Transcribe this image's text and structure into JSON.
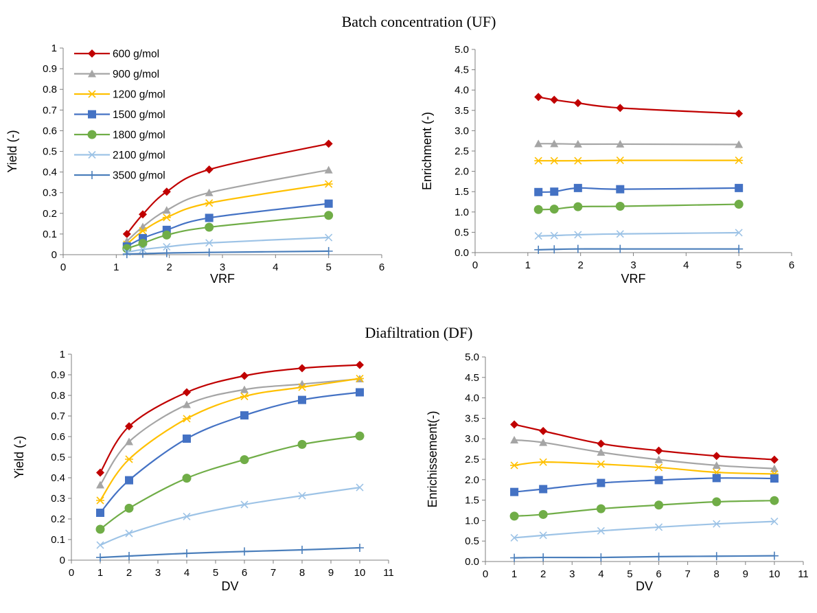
{
  "figure": {
    "section_top_title": "Batch concentration (UF)",
    "section_bottom_title": "Diafiltration  (DF)"
  },
  "colors": {
    "600": "#C00000",
    "900": "#A5A5A5",
    "1200": "#FFC000",
    "1500": "#4472C4",
    "1800": "#70AD47",
    "2100": "#9DC3E6",
    "3500": "#4A7EBB"
  },
  "chart_data": [
    {
      "id": "uf-yield",
      "type": "line",
      "title": "",
      "xlabel": "VRF",
      "ylabel": "Yield (-)",
      "xlim": [
        0,
        6
      ],
      "ylim": [
        0,
        1
      ],
      "xticks": [
        0,
        1,
        2,
        3,
        4,
        5,
        6
      ],
      "yticks": [
        0,
        0.1,
        0.2,
        0.3,
        0.4,
        0.5,
        0.6,
        0.7,
        0.8,
        0.9,
        1
      ],
      "ytick_labels": [
        "0",
        "0.1",
        "0.2",
        "0.3",
        "0.4",
        "0.5",
        "0.6",
        "0.7",
        "0.8",
        "0.9",
        "1"
      ],
      "grid": false,
      "legend": "top-left",
      "x": [
        1.2,
        1.5,
        1.95,
        2.75,
        5
      ],
      "series": [
        {
          "name": "600 g/mol",
          "key": "600",
          "marker": "diamond",
          "values": [
            0.1,
            0.195,
            0.305,
            0.412,
            0.537
          ]
        },
        {
          "name": "900 g/mol",
          "key": "900",
          "marker": "triangle",
          "values": [
            0.065,
            0.135,
            0.215,
            0.3,
            0.41
          ]
        },
        {
          "name": "1200 g/mol",
          "key": "1200",
          "marker": "star",
          "values": [
            0.05,
            0.115,
            0.18,
            0.25,
            0.342
          ]
        },
        {
          "name": "1500 g/mol",
          "key": "1500",
          "marker": "square",
          "values": [
            0.04,
            0.08,
            0.12,
            0.178,
            0.247
          ]
        },
        {
          "name": "1800 g/mol",
          "key": "1800",
          "marker": "circle",
          "values": [
            0.03,
            0.055,
            0.095,
            0.133,
            0.19
          ]
        },
        {
          "name": "2100 g/mol",
          "key": "2100",
          "marker": "x",
          "values": [
            0.012,
            0.025,
            0.038,
            0.057,
            0.083
          ]
        },
        {
          "name": "3500 g/mol",
          "key": "3500",
          "marker": "plus",
          "values": [
            0.003,
            0.005,
            0.008,
            0.011,
            0.017
          ]
        }
      ]
    },
    {
      "id": "uf-enrichment",
      "type": "line",
      "title": "",
      "xlabel": "VRF",
      "ylabel": "Enrichment (-)",
      "xlim": [
        0,
        6
      ],
      "ylim": [
        0,
        5
      ],
      "xticks": [
        0,
        1,
        2,
        3,
        4,
        5,
        6
      ],
      "yticks": [
        0,
        0.5,
        1,
        1.5,
        2,
        2.5,
        3,
        3.5,
        4,
        4.5,
        5
      ],
      "ytick_labels": [
        "0.0",
        "0.5",
        "1.0",
        "1.5",
        "2.0",
        "2.5",
        "3.0",
        "3.5",
        "4.0",
        "4.5",
        "5.0"
      ],
      "grid": false,
      "x": [
        1.2,
        1.5,
        1.95,
        2.75,
        5
      ],
      "series": [
        {
          "key": "600",
          "marker": "diamond",
          "values": [
            3.83,
            3.76,
            3.68,
            3.56,
            3.42
          ]
        },
        {
          "key": "900",
          "marker": "triangle",
          "values": [
            2.68,
            2.68,
            2.67,
            2.67,
            2.66
          ]
        },
        {
          "key": "1200",
          "marker": "star",
          "values": [
            2.26,
            2.26,
            2.26,
            2.27,
            2.27
          ]
        },
        {
          "key": "1500",
          "marker": "square",
          "values": [
            1.49,
            1.5,
            1.59,
            1.56,
            1.59
          ]
        },
        {
          "key": "1800",
          "marker": "circle",
          "values": [
            1.06,
            1.07,
            1.13,
            1.14,
            1.19
          ]
        },
        {
          "key": "2100",
          "marker": "x",
          "values": [
            0.41,
            0.42,
            0.44,
            0.46,
            0.49
          ]
        },
        {
          "key": "3500",
          "marker": "plus",
          "values": [
            0.07,
            0.08,
            0.09,
            0.09,
            0.09
          ]
        }
      ]
    },
    {
      "id": "df-yield",
      "type": "line",
      "title": "",
      "xlabel": "DV",
      "ylabel": "Yield (-)",
      "xlim": [
        0,
        11
      ],
      "ylim": [
        0,
        1
      ],
      "xticks": [
        0,
        1,
        2,
        3,
        4,
        5,
        6,
        7,
        8,
        9,
        10,
        11
      ],
      "yticks": [
        0,
        0.1,
        0.2,
        0.3,
        0.4,
        0.5,
        0.6,
        0.7,
        0.8,
        0.9,
        1
      ],
      "ytick_labels": [
        "0",
        "0.1",
        "0.2",
        "0.3",
        "0.4",
        "0.5",
        "0.6",
        "0.7",
        "0.8",
        "0.9",
        "1"
      ],
      "grid": false,
      "x": [
        1,
        2,
        4,
        6,
        8,
        10
      ],
      "series": [
        {
          "key": "600",
          "marker": "diamond",
          "values": [
            0.425,
            0.65,
            0.815,
            0.895,
            0.932,
            0.948
          ]
        },
        {
          "key": "900",
          "marker": "triangle",
          "values": [
            0.365,
            0.575,
            0.755,
            0.828,
            0.855,
            0.88
          ]
        },
        {
          "key": "1200",
          "marker": "star",
          "values": [
            0.29,
            0.49,
            0.687,
            0.795,
            0.84,
            0.882
          ]
        },
        {
          "key": "1500",
          "marker": "square",
          "values": [
            0.23,
            0.388,
            0.59,
            0.703,
            0.778,
            0.815
          ]
        },
        {
          "key": "1800",
          "marker": "circle",
          "values": [
            0.15,
            0.252,
            0.398,
            0.488,
            0.562,
            0.603
          ]
        },
        {
          "key": "2100",
          "marker": "x",
          "values": [
            0.073,
            0.13,
            0.212,
            0.27,
            0.313,
            0.353
          ]
        },
        {
          "key": "3500",
          "marker": "plus",
          "values": [
            0.013,
            0.02,
            0.033,
            0.042,
            0.05,
            0.06
          ]
        }
      ]
    },
    {
      "id": "df-enrichment",
      "type": "line",
      "title": "",
      "xlabel": "DV",
      "ylabel": "Enrichissement(-)",
      "xlim": [
        0,
        11
      ],
      "ylim": [
        0,
        5
      ],
      "xticks": [
        0,
        1,
        2,
        3,
        4,
        5,
        6,
        7,
        8,
        9,
        10,
        11
      ],
      "yticks": [
        0,
        0.5,
        1,
        1.5,
        2,
        2.5,
        3,
        3.5,
        4,
        4.5,
        5
      ],
      "ytick_labels": [
        "0.0",
        "0.5",
        "1.0",
        "1.5",
        "2.0",
        "2.5",
        "3.0",
        "3.5",
        "4.0",
        "4.5",
        "5.0"
      ],
      "grid": false,
      "x": [
        1,
        2,
        4,
        6,
        8,
        10
      ],
      "series": [
        {
          "key": "600",
          "marker": "diamond",
          "values": [
            3.35,
            3.19,
            2.88,
            2.71,
            2.58,
            2.49
          ]
        },
        {
          "key": "900",
          "marker": "triangle",
          "values": [
            2.97,
            2.91,
            2.67,
            2.49,
            2.35,
            2.27
          ]
        },
        {
          "key": "1200",
          "marker": "star",
          "values": [
            2.35,
            2.43,
            2.38,
            2.3,
            2.18,
            2.14
          ]
        },
        {
          "key": "1500",
          "marker": "square",
          "values": [
            1.7,
            1.77,
            1.92,
            1.99,
            2.04,
            2.03
          ]
        },
        {
          "key": "1800",
          "marker": "circle",
          "values": [
            1.11,
            1.15,
            1.29,
            1.38,
            1.46,
            1.49
          ]
        },
        {
          "key": "2100",
          "marker": "x",
          "values": [
            0.58,
            0.64,
            0.75,
            0.84,
            0.92,
            0.98
          ]
        },
        {
          "key": "3500",
          "marker": "plus",
          "values": [
            0.09,
            0.1,
            0.1,
            0.12,
            0.13,
            0.14
          ]
        }
      ]
    }
  ]
}
